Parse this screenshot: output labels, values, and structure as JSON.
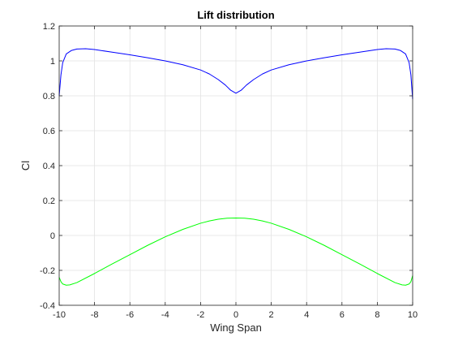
{
  "chart_data": {
    "type": "line",
    "title": "Lift distribution",
    "xlabel": "Wing Span",
    "ylabel": "Cl",
    "xlim": [
      -10,
      10
    ],
    "ylim": [
      -0.4,
      1.2
    ],
    "xticks": [
      -10,
      -8,
      -6,
      -4,
      -2,
      0,
      2,
      4,
      6,
      8,
      10
    ],
    "yticks": [
      -0.4,
      -0.2,
      0,
      0.2,
      0.4,
      0.6,
      0.8,
      1,
      1.2
    ],
    "xtick_labels": [
      "-10",
      "-8",
      "-6",
      "-4",
      "-2",
      "0",
      "2",
      "4",
      "6",
      "8",
      "10"
    ],
    "ytick_labels": [
      "-0.4",
      "-0.2",
      "0",
      "0.2",
      "0.4",
      "0.6",
      "0.8",
      "1",
      "1.2"
    ],
    "grid": true,
    "series": [
      {
        "color": "#0000ff",
        "x": [
          -10,
          -9.9,
          -9.8,
          -9.6,
          -9.3,
          -9.0,
          -8.5,
          -8.0,
          -7.0,
          -6.0,
          -5.0,
          -4.0,
          -3.0,
          -2.0,
          -1.5,
          -1.0,
          -0.6,
          -0.3,
          0,
          0.3,
          0.6,
          1.0,
          1.5,
          2.0,
          3.0,
          4.0,
          5.0,
          6.0,
          7.0,
          8.0,
          8.5,
          9.0,
          9.3,
          9.6,
          9.8,
          9.9,
          10
        ],
        "y": [
          0.8,
          0.92,
          0.99,
          1.04,
          1.06,
          1.068,
          1.07,
          1.065,
          1.05,
          1.035,
          1.018,
          1.0,
          0.978,
          0.948,
          0.925,
          0.893,
          0.862,
          0.832,
          0.815,
          0.832,
          0.862,
          0.893,
          0.925,
          0.948,
          0.978,
          1.0,
          1.018,
          1.035,
          1.05,
          1.065,
          1.07,
          1.068,
          1.06,
          1.04,
          0.99,
          0.92,
          0.78
        ]
      },
      {
        "color": "#00ff00",
        "x": [
          -10,
          -9.9,
          -9.8,
          -9.6,
          -9.4,
          -9.0,
          -8.0,
          -7.0,
          -6.0,
          -5.0,
          -4.0,
          -3.0,
          -2.0,
          -1.5,
          -1.0,
          -0.5,
          0,
          0.5,
          1.0,
          1.5,
          2.0,
          3.0,
          4.0,
          5.0,
          6.0,
          7.0,
          8.0,
          9.0,
          9.4,
          9.6,
          9.8,
          9.9,
          10
        ],
        "y": [
          -0.24,
          -0.265,
          -0.278,
          -0.285,
          -0.283,
          -0.27,
          -0.218,
          -0.163,
          -0.11,
          -0.057,
          -0.008,
          0.035,
          0.07,
          0.083,
          0.093,
          0.099,
          0.1,
          0.099,
          0.093,
          0.083,
          0.07,
          0.035,
          -0.008,
          -0.057,
          -0.11,
          -0.163,
          -0.218,
          -0.27,
          -0.283,
          -0.285,
          -0.278,
          -0.265,
          -0.23
        ]
      }
    ]
  }
}
